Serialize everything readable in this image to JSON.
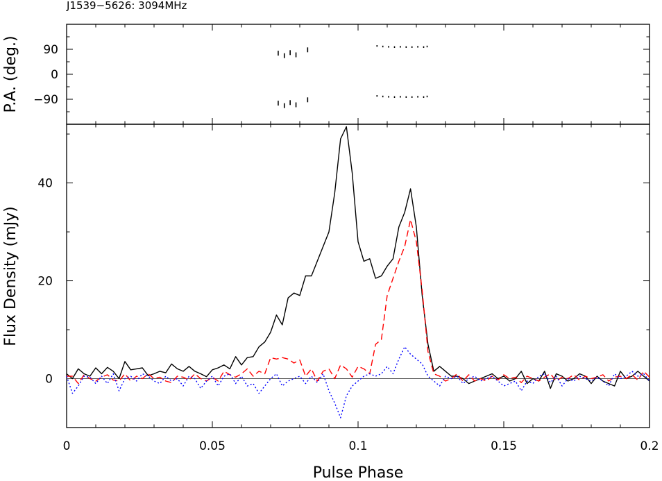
{
  "chart_data": [
    {
      "type": "scatter",
      "title": "J1539−5626: 3094MHz",
      "ylabel": "P.A. (deg.)",
      "xlim": [
        0,
        0.2
      ],
      "ylim": [
        -180,
        180
      ],
      "yticks": [
        -90,
        0,
        90
      ],
      "ytick_labels": [
        "−90",
        "0",
        "90"
      ],
      "series": [
        {
          "x": [
            0.0726,
            0.0747,
            0.0767,
            0.0787,
            0.0827,
            0.1065,
            0.1085,
            0.1105,
            0.1125,
            0.1145,
            0.1165,
            0.1185,
            0.1205,
            0.1225,
            0.1237
          ],
          "y": [
            76,
            67,
            78,
            70,
            88,
            102,
            100,
            99,
            98,
            99,
            98,
            98,
            99,
            98,
            100
          ]
        },
        {
          "x": [
            0.0726,
            0.0747,
            0.0767,
            0.0787,
            0.0827,
            0.1065,
            0.1085,
            0.1105,
            0.1125,
            0.1145,
            0.1165,
            0.1185,
            0.1205,
            0.1225,
            0.1237
          ],
          "y": [
            -104,
            -113,
            -102,
            -110,
            -92,
            -78,
            -80,
            -81,
            -82,
            -81,
            -82,
            -82,
            -81,
            -82,
            -80
          ]
        }
      ]
    },
    {
      "type": "line",
      "xlabel": "Pulse Phase",
      "ylabel": "Flux Density (mJy)",
      "xlim": [
        0,
        0.2
      ],
      "ylim": [
        -10,
        52
      ],
      "xticks": [
        0,
        0.05,
        0.1,
        0.15,
        0.2
      ],
      "xtick_labels": [
        "0",
        "0.05",
        "0.1",
        "0.15",
        "0.2"
      ],
      "yticks": [
        0,
        20,
        40
      ],
      "ytick_labels": [
        "0",
        "20",
        "40"
      ],
      "x": [
        0.0,
        0.002,
        0.004,
        0.006,
        0.008,
        0.01,
        0.012,
        0.014,
        0.016,
        0.018,
        0.02,
        0.022,
        0.024,
        0.026,
        0.028,
        0.03,
        0.032,
        0.034,
        0.036,
        0.038,
        0.04,
        0.042,
        0.044,
        0.046,
        0.048,
        0.05,
        0.052,
        0.054,
        0.056,
        0.058,
        0.06,
        0.062,
        0.064,
        0.066,
        0.068,
        0.07,
        0.072,
        0.074,
        0.076,
        0.078,
        0.08,
        0.082,
        0.084,
        0.086,
        0.088,
        0.09,
        0.092,
        0.094,
        0.096,
        0.098,
        0.1,
        0.102,
        0.104,
        0.106,
        0.108,
        0.11,
        0.112,
        0.114,
        0.116,
        0.118,
        0.12,
        0.122,
        0.124,
        0.126,
        0.128,
        0.13,
        0.132,
        0.134,
        0.136,
        0.138,
        0.14,
        0.142,
        0.144,
        0.146,
        0.148,
        0.15,
        0.152,
        0.154,
        0.156,
        0.158,
        0.16,
        0.162,
        0.164,
        0.166,
        0.168,
        0.17,
        0.172,
        0.174,
        0.176,
        0.178,
        0.18,
        0.182,
        0.184,
        0.186,
        0.188,
        0.19,
        0.192,
        0.194,
        0.196,
        0.198,
        0.2
      ],
      "series": [
        {
          "name": "",
          "color": "#000000",
          "dash": "solid",
          "values": [
            1.0,
            0.0,
            2.0,
            1.0,
            0.5,
            2.2,
            1.0,
            2.3,
            1.5,
            0.0,
            3.5,
            1.8,
            2.0,
            2.2,
            0.6,
            1.0,
            1.5,
            1.2,
            3.0,
            2.0,
            1.5,
            2.5,
            1.5,
            1.0,
            0.4,
            1.8,
            2.2,
            2.8,
            2.0,
            4.5,
            2.8,
            4.3,
            4.5,
            6.5,
            7.5,
            9.5,
            13.0,
            11.0,
            16.5,
            17.5,
            17.0,
            21.0,
            21.0,
            24.0,
            27.0,
            30.0,
            38.0,
            49.0,
            51.5,
            42.0,
            28.0,
            24.0,
            24.5,
            20.5,
            21.0,
            23.0,
            24.5,
            31.0,
            34.0,
            38.8,
            31.0,
            17.0,
            7.0,
            1.5,
            2.5,
            1.5,
            0.5,
            0.5,
            0.0,
            -1.0,
            -0.5,
            0.0,
            0.5,
            1.0,
            0.0,
            0.5,
            -0.5,
            0.0,
            1.5,
            -1.0,
            0.0,
            -0.5,
            1.5,
            -2.0,
            1.0,
            0.5,
            -0.5,
            0.0,
            1.0,
            0.5,
            -1.0,
            0.5,
            -0.5,
            -1.0,
            -1.5,
            1.5,
            0.0,
            0.5,
            1.5,
            0.5,
            -0.5
          ]
        },
        {
          "name": "",
          "color": "#ff0000",
          "dash": "dashed",
          "values": [
            0.5,
            0.5,
            -1.0,
            0.8,
            0.0,
            -0.5,
            0.3,
            0.8,
            -0.3,
            -0.5,
            1.0,
            -0.5,
            0.5,
            0.0,
            1.0,
            0.0,
            0.3,
            -0.5,
            -0.8,
            0.5,
            0.3,
            -0.3,
            1.0,
            0.0,
            -0.5,
            0.3,
            -0.5,
            1.5,
            0.8,
            0.3,
            1.0,
            2.0,
            0.5,
            1.5,
            1.0,
            4.3,
            4.0,
            4.3,
            4.0,
            3.2,
            3.8,
            0.5,
            2.0,
            -0.5,
            1.5,
            2.0,
            0.0,
            2.8,
            2.0,
            0.3,
            2.5,
            2.0,
            1.0,
            7.0,
            8.0,
            17.0,
            20.5,
            24.0,
            27.0,
            32.5,
            28.0,
            18.0,
            5.5,
            1.0,
            0.5,
            -0.5,
            0.0,
            1.0,
            -0.5,
            0.8,
            -0.5,
            0.0,
            -0.5,
            0.5,
            -0.3,
            0.8,
            0.0,
            0.3,
            -0.8,
            0.5,
            0.0,
            -0.5,
            0.3,
            1.0,
            -0.5,
            0.3,
            0.0,
            0.8,
            -0.3,
            0.5,
            0.0,
            0.3,
            0.8,
            -0.5,
            0.3,
            0.5,
            0.0,
            0.8,
            -0.3,
            1.5,
            0.3
          ]
        },
        {
          "name": "",
          "color": "#0000ff",
          "dash": "dotted",
          "values": [
            0.5,
            -3.0,
            -1.5,
            0.5,
            0.3,
            -1.0,
            0.5,
            -1.0,
            1.0,
            -2.5,
            0.0,
            0.5,
            -0.5,
            1.0,
            0.5,
            -0.5,
            -1.0,
            0.5,
            -0.5,
            0.0,
            -1.5,
            0.5,
            0.0,
            -2.0,
            -0.5,
            0.5,
            -1.5,
            0.5,
            1.0,
            -1.0,
            0.5,
            -1.5,
            -1.0,
            -3.0,
            -1.5,
            0.0,
            1.0,
            -1.5,
            -0.5,
            0.0,
            0.5,
            -1.0,
            0.5,
            -0.8,
            1.0,
            -2.5,
            -5.0,
            -8.0,
            -3.5,
            -1.5,
            -0.5,
            0.5,
            1.0,
            0.5,
            1.0,
            2.5,
            1.0,
            4.0,
            6.5,
            5.0,
            4.0,
            3.0,
            0.5,
            -0.5,
            -1.5,
            0.5,
            0.0,
            0.5,
            -1.0,
            0.0,
            0.5,
            -0.5,
            0.0,
            0.5,
            -0.5,
            -1.5,
            -1.0,
            -0.5,
            -2.5,
            -0.5,
            -1.0,
            0.5,
            1.0,
            -0.8,
            0.5,
            -1.5,
            0.0,
            -0.5,
            0.5,
            0.0,
            -0.5,
            0.3,
            -0.5,
            -1.5,
            1.0,
            0.0,
            0.5,
            1.5,
            0.5,
            1.0,
            -0.5
          ]
        }
      ]
    }
  ]
}
